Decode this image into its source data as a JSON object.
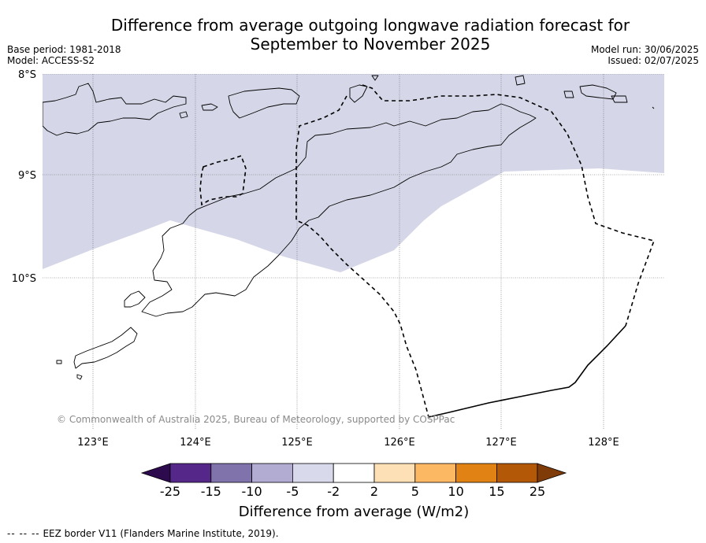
{
  "title": {
    "line1": "Difference from average outgoing longwave radiation forecast for",
    "line2": "September to November 2025"
  },
  "meta_left": {
    "base_period": "Base period: 1981-2018",
    "model": "Model: ACCESS-S2"
  },
  "meta_right": {
    "model_run": "Model run: 30/06/2025",
    "issued": "Issued: 02/07/2025"
  },
  "map": {
    "lat_labels": [
      "8°S",
      "9°S",
      "10°S"
    ],
    "lon_labels": [
      "123°E",
      "124°E",
      "125°E",
      "126°E",
      "127°E",
      "128°E"
    ],
    "anomaly_fill_color": "#d5d6e7",
    "eez_border_style": "dashed",
    "copyright": "© Commonwealth of Australia 2025, Bureau of Meteorology, supported by COSPPac"
  },
  "colorbar": {
    "title": "Difference from average (W/m2)",
    "ticks": [
      "-25",
      "-15",
      "-10",
      "-5",
      "-2",
      "2",
      "5",
      "10",
      "15",
      "25"
    ],
    "colors": [
      "#2d0a4e",
      "#542788",
      "#8073ac",
      "#b2abd2",
      "#d8daeb",
      "#ffffff",
      "#fee0b6",
      "#fdb863",
      "#e08214",
      "#b35806",
      "#7f3b08"
    ]
  },
  "footnote": {
    "marker": "-- -- --",
    "text": "EEZ border V11 (Flanders Marine Institute, 2019)."
  }
}
